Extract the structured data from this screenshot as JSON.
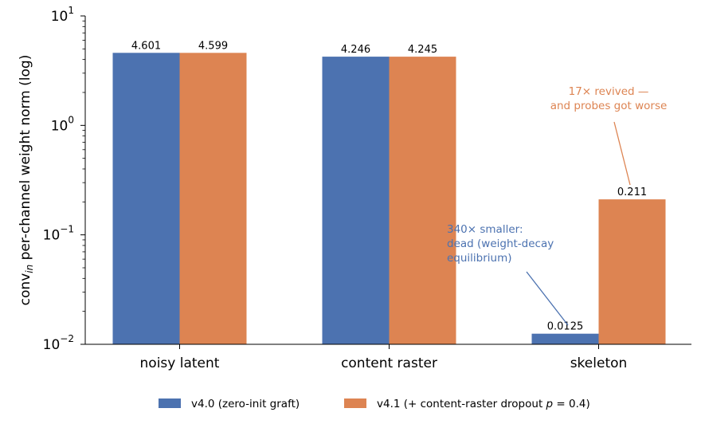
{
  "chart_data": {
    "type": "bar",
    "yscale": "log",
    "ylim": [
      0.01,
      10
    ],
    "ylabel_main": "conv",
    "ylabel_sub": "in",
    "ylabel_rest": " per-channel weight norm (log)",
    "yticks": [
      {
        "value": 0.01,
        "base": "10",
        "exp": "−2"
      },
      {
        "value": 0.1,
        "base": "10",
        "exp": "−1"
      },
      {
        "value": 1,
        "base": "10",
        "exp": "0"
      },
      {
        "value": 10,
        "base": "10",
        "exp": "1"
      }
    ],
    "categories": [
      "noisy latent",
      "content raster",
      "skeleton"
    ],
    "series": [
      {
        "name": "v4.0 (zero-init graft)",
        "color": "#4c72b0",
        "values": [
          4.601,
          4.246,
          0.0125
        ],
        "labels": [
          "4.601",
          "4.246",
          "0.0125"
        ]
      },
      {
        "name_main": "v4.1 (+ content-raster dropout ",
        "name_var": "p",
        "name_rest": " = 0.4)",
        "color": "#dd8452",
        "values": [
          4.599,
          4.245,
          0.211
        ],
        "labels": [
          "4.599",
          "4.245",
          "0.211"
        ]
      }
    ],
    "annotations": [
      {
        "lines": [
          "340× smaller:",
          "dead (weight-decay",
          "equilibrium)"
        ],
        "color": "#4c72b0",
        "points_to": {
          "category": "skeleton",
          "series": 0,
          "value": 0.0125
        }
      },
      {
        "lines": [
          "17× revived —",
          "and probes got worse"
        ],
        "color": "#dd8452",
        "points_to": {
          "category": "skeleton",
          "series": 1,
          "value": 0.211
        }
      }
    ],
    "legend_position": "bottom-center",
    "grid": false
  }
}
